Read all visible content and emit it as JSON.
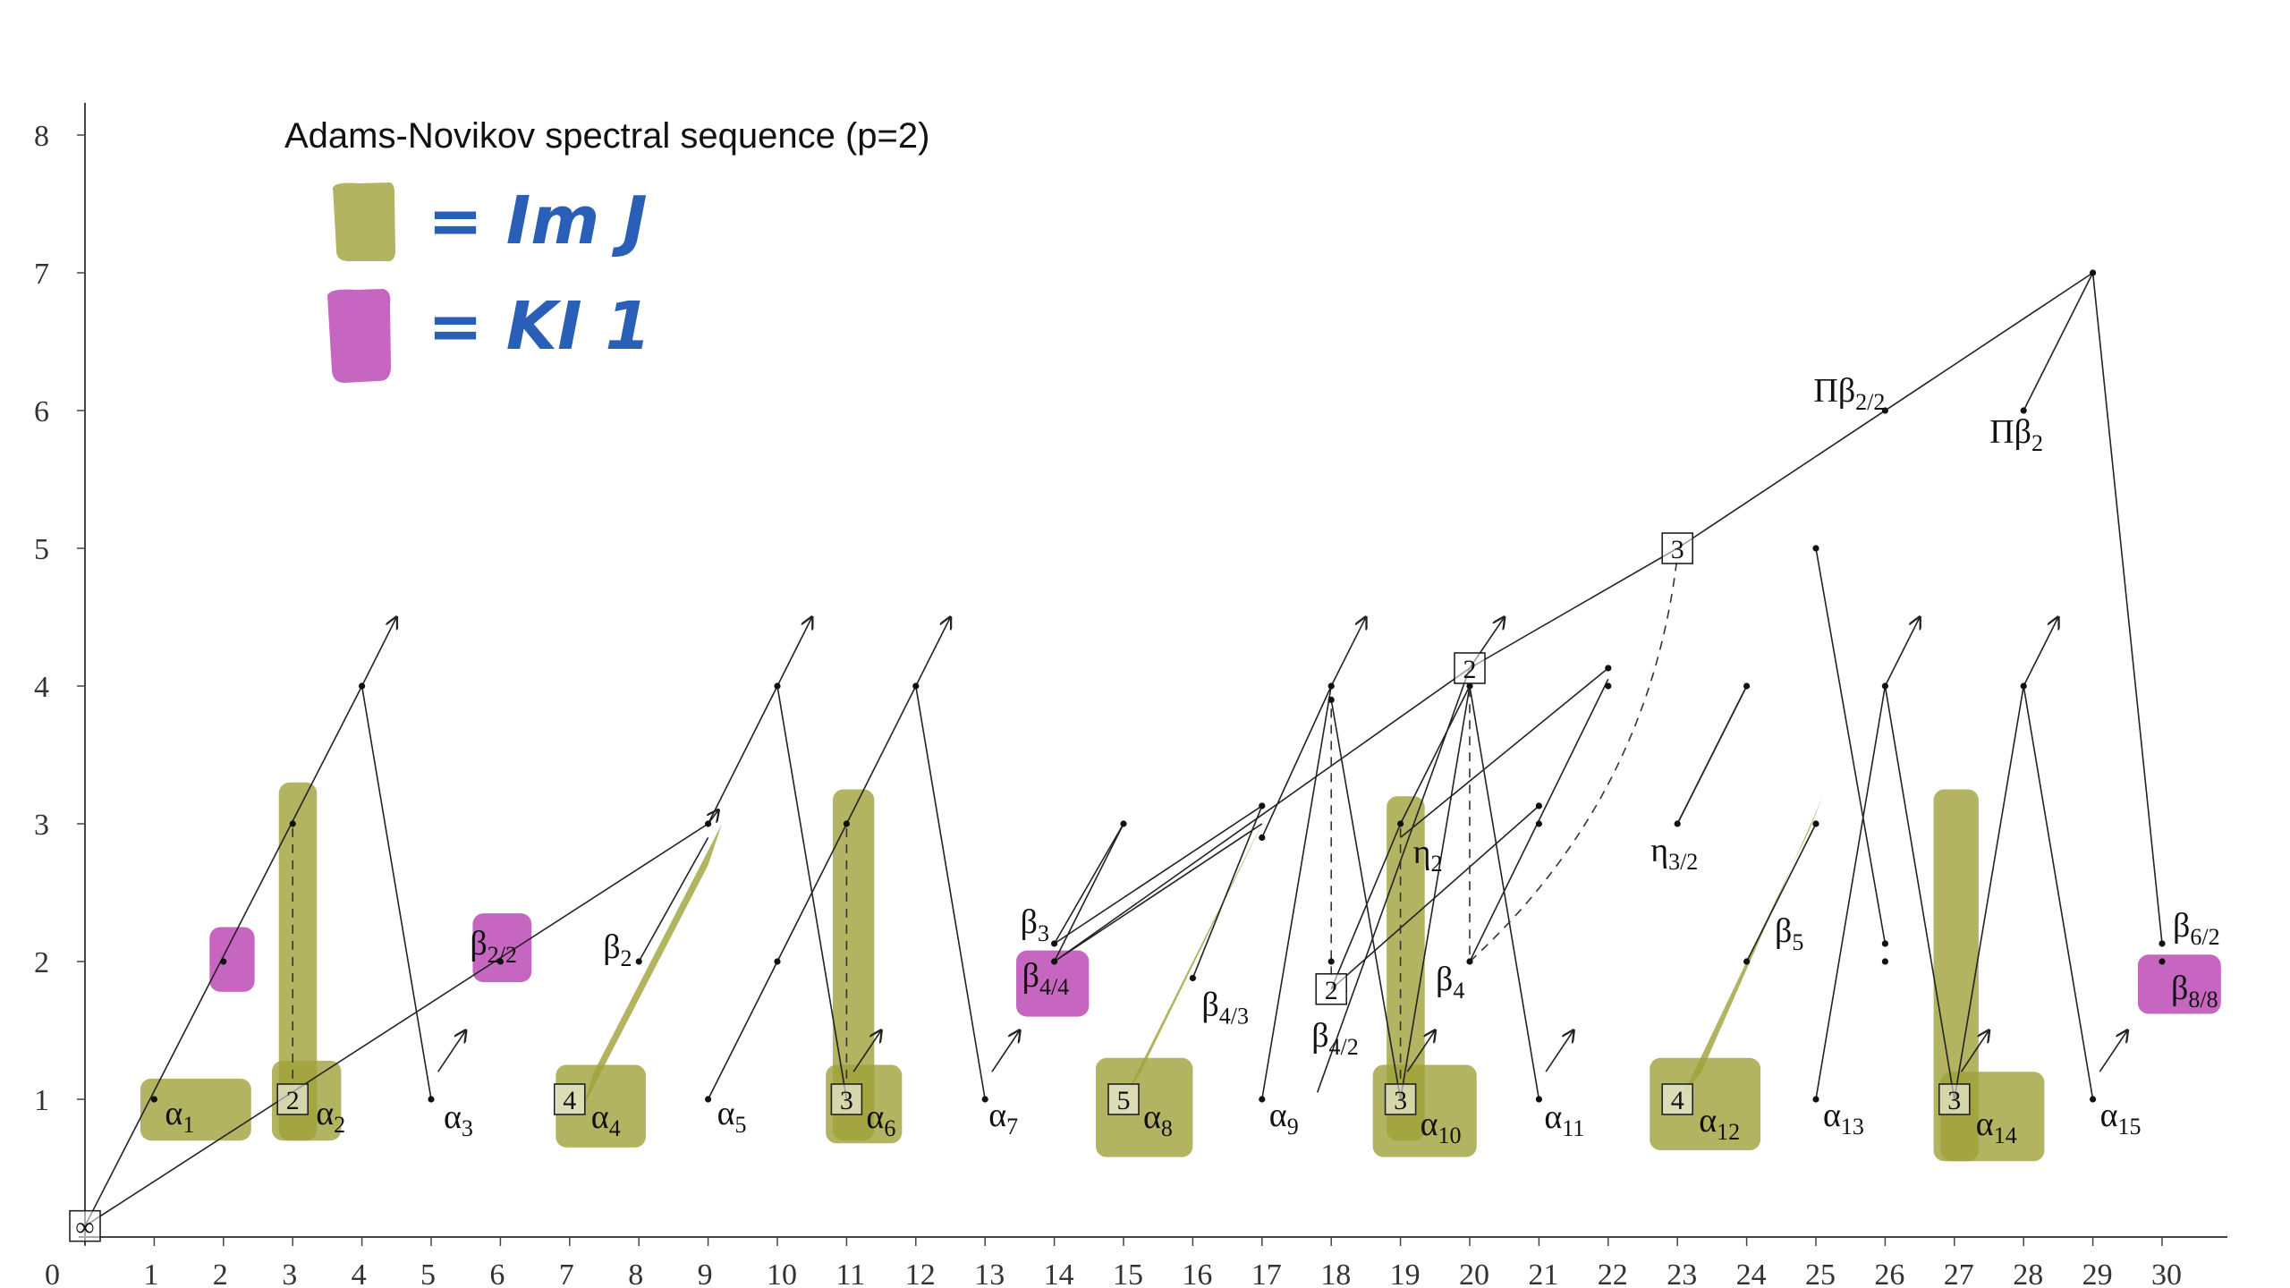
{
  "title": "Adams-Novikov spectral sequence (p=2)",
  "legend": [
    {
      "label": "= Im J",
      "color": "#9fa13a"
    },
    {
      "label": "= KI 1",
      "color": "#b840b0"
    }
  ],
  "x_ticks": [
    "0",
    "1",
    "2",
    "3",
    "4",
    "5",
    "6",
    "7",
    "8",
    "9",
    "10",
    "11",
    "12",
    "13",
    "14",
    "15",
    "16",
    "17",
    "18",
    "19",
    "20",
    "21",
    "22",
    "23",
    "24",
    "25",
    "26",
    "27",
    "28",
    "29",
    "30"
  ],
  "y_ticks": [
    "0",
    "1",
    "2",
    "3",
    "4",
    "5",
    "6",
    "7",
    "8"
  ],
  "infinity_box": "∞",
  "boxes": [
    {
      "x": 3,
      "y": 1,
      "label": "2"
    },
    {
      "x": 7,
      "y": 1,
      "label": "4"
    },
    {
      "x": 11,
      "y": 1,
      "label": "3"
    },
    {
      "x": 15,
      "y": 1,
      "label": "5"
    },
    {
      "x": 19,
      "y": 1,
      "label": "3"
    },
    {
      "x": 23,
      "y": 1,
      "label": "4"
    },
    {
      "x": 27,
      "y": 1,
      "label": "3"
    },
    {
      "x": 18,
      "y": 1.8,
      "label": "2"
    },
    {
      "x": 20,
      "y": 4.13,
      "label": "2"
    },
    {
      "x": 23,
      "y": 5,
      "label": "3"
    }
  ],
  "labels": [
    {
      "base": "α",
      "sub": "1",
      "x": 1,
      "y": 1
    },
    {
      "base": "α",
      "sub": "2",
      "x": 3,
      "y": 1
    },
    {
      "base": "α",
      "sub": "3",
      "x": 5,
      "y": 1
    },
    {
      "base": "α",
      "sub": "4",
      "x": 7,
      "y": 1
    },
    {
      "base": "α",
      "sub": "5",
      "x": 9,
      "y": 1
    },
    {
      "base": "α",
      "sub": "6",
      "x": 11,
      "y": 1
    },
    {
      "base": "α",
      "sub": "7",
      "x": 13,
      "y": 1
    },
    {
      "base": "α",
      "sub": "8",
      "x": 15,
      "y": 1
    },
    {
      "base": "α",
      "sub": "9",
      "x": 17,
      "y": 1
    },
    {
      "base": "α",
      "sub": "10",
      "x": 19,
      "y": 1
    },
    {
      "base": "α",
      "sub": "11",
      "x": 21,
      "y": 1
    },
    {
      "base": "α",
      "sub": "12",
      "x": 23,
      "y": 1
    },
    {
      "base": "α",
      "sub": "13",
      "x": 25,
      "y": 1
    },
    {
      "base": "α",
      "sub": "14",
      "x": 27,
      "y": 1
    },
    {
      "base": "α",
      "sub": "15",
      "x": 29,
      "y": 1
    },
    {
      "base": "β",
      "sub": "2/2",
      "x": 6,
      "y": 2
    },
    {
      "base": "β",
      "sub": "2",
      "x": 8,
      "y": 2
    },
    {
      "base": "β",
      "sub": "3",
      "x": 14,
      "y": 2.13
    },
    {
      "base": "β",
      "sub": "4/4",
      "x": 14,
      "y": 2
    },
    {
      "base": "β",
      "sub": "4/3",
      "x": 16,
      "y": 1.88
    },
    {
      "base": "β",
      "sub": "4/2",
      "x": 18,
      "y": 1.8
    },
    {
      "base": "η",
      "sub": "2",
      "x": 19,
      "y": 3
    },
    {
      "base": "β",
      "sub": "4",
      "x": 20,
      "y": 2
    },
    {
      "base": "η",
      "sub": "3/2",
      "x": 23,
      "y": 3
    },
    {
      "base": "β",
      "sub": "5",
      "x": 25,
      "y": 2.13
    },
    {
      "base": "β",
      "sub": "6/2",
      "x": 30,
      "y": 2.13
    },
    {
      "base": "β",
      "sub": "8/8",
      "x": 30,
      "y": 2
    },
    {
      "base": "Πβ",
      "sub": "2/2",
      "x": 26,
      "y": 6
    },
    {
      "base": "Πβ",
      "sub": "2",
      "x": 28,
      "y": 6
    }
  ]
}
